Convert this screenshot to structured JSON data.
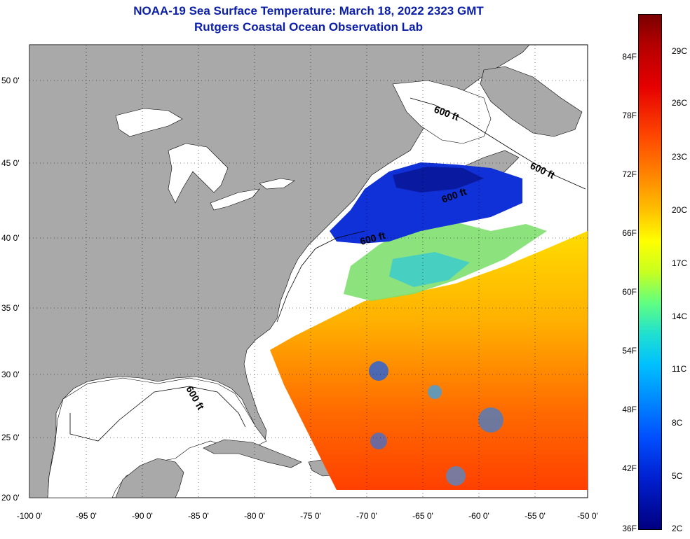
{
  "title": "NOAA-19 Sea Surface Temperature:  March 18, 2022 2323 GMT",
  "subtitle": "Rutgers Coastal Ocean Observation Lab",
  "lat_labels": [
    "50 0'",
    "45 0'",
    "40 0'",
    "35 0'",
    "30 0'",
    "25 0'",
    "20 0'"
  ],
  "lon_labels": [
    "-100 0'",
    "-95 0'",
    "-90 0'",
    "-85 0'",
    "-80 0'",
    "-75 0'",
    "-70 0'",
    "-65 0'",
    "-60 0'",
    "-55 0'",
    "-50 0'"
  ],
  "contour_label": "600 ft",
  "colorbar": {
    "fahrenheit": [
      "84F",
      "78F",
      "72F",
      "66F",
      "60F",
      "54F",
      "48F",
      "42F",
      "36F"
    ],
    "celsius": [
      "29C",
      "26C",
      "23C",
      "20C",
      "17C",
      "14C",
      "11C",
      "8C",
      "5C",
      "2C"
    ]
  },
  "colors": {
    "land": "#a9a9a9",
    "title": "#0a1ea8",
    "sea_bg": "#ffffff"
  }
}
